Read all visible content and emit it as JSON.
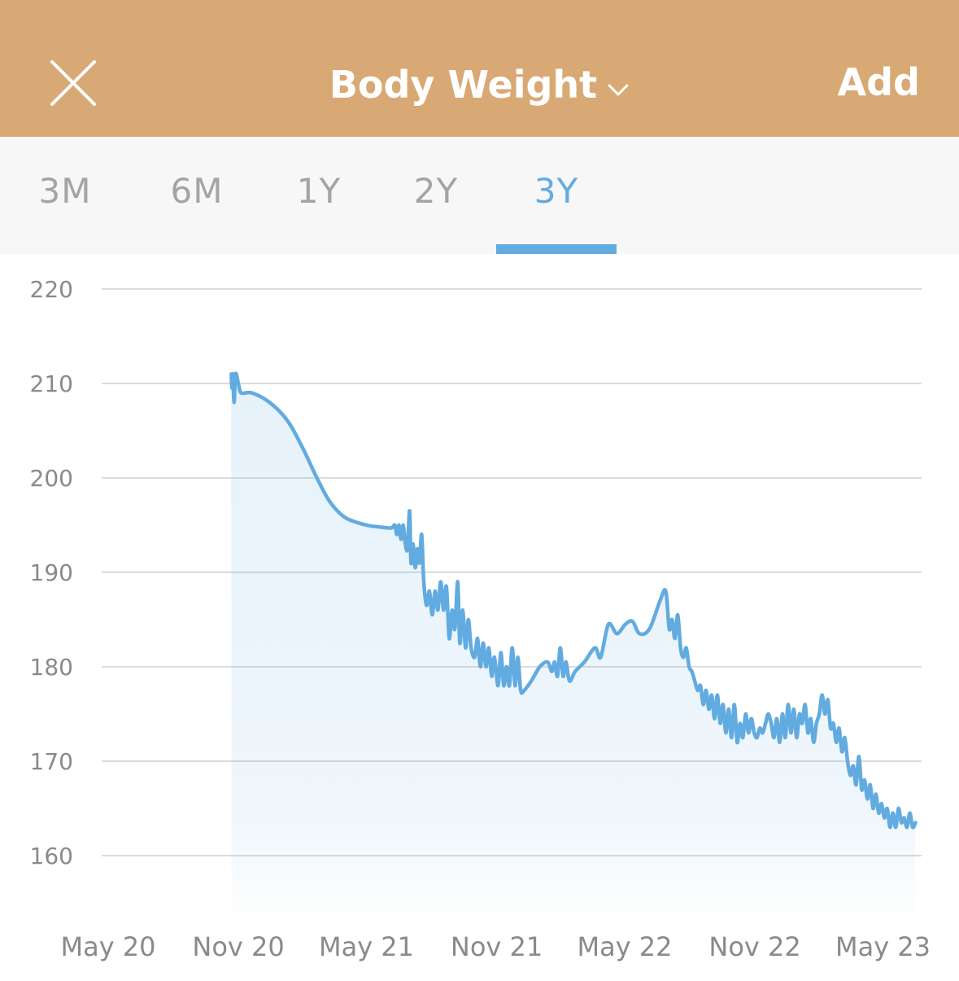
{
  "header": {
    "title": "Body Weight",
    "add_label": "Add",
    "background_color": "#d8a974",
    "close_icon": "close-icon",
    "dropdown_icon": "chevron-down-icon"
  },
  "tabs": [
    {
      "label": "3M",
      "active": false
    },
    {
      "label": "6M",
      "active": false
    },
    {
      "label": "1Y",
      "active": false
    },
    {
      "label": "2Y",
      "active": false
    },
    {
      "label": "3Y",
      "active": true
    }
  ],
  "chart_data": {
    "type": "area",
    "series_color": "#62abe0",
    "grid": true,
    "ylim": [
      150,
      220
    ],
    "yticks": [
      220,
      210,
      200,
      190,
      180,
      170,
      160
    ],
    "xlim": [
      "2020-05-01",
      "2023-06-20"
    ],
    "xticks": [
      {
        "date": "2020-05-01",
        "label": "May 20"
      },
      {
        "date": "2020-11-01",
        "label": "Nov 20"
      },
      {
        "date": "2021-05-01",
        "label": "May 21"
      },
      {
        "date": "2021-11-01",
        "label": "Nov 21"
      },
      {
        "date": "2022-05-01",
        "label": "May 22"
      },
      {
        "date": "2022-11-01",
        "label": "Nov 22"
      },
      {
        "date": "2023-05-01",
        "label": "May 23"
      }
    ],
    "points": [
      [
        "2020-10-22",
        211
      ],
      [
        "2020-10-23",
        209.5
      ],
      [
        "2020-10-24",
        211
      ],
      [
        "2020-10-26",
        208
      ],
      [
        "2020-10-28",
        211
      ],
      [
        "2020-11-01",
        210
      ],
      [
        "2020-11-05",
        209
      ],
      [
        "2020-11-20",
        209
      ],
      [
        "2020-12-15",
        208
      ],
      [
        "2021-01-10",
        206
      ],
      [
        "2021-02-01",
        203
      ],
      [
        "2021-02-20",
        200
      ],
      [
        "2021-03-10",
        197.5
      ],
      [
        "2021-04-01",
        195.8
      ],
      [
        "2021-05-01",
        195
      ],
      [
        "2021-05-20",
        194.8
      ],
      [
        "2021-06-05",
        194.7
      ],
      [
        "2021-06-10",
        195
      ],
      [
        "2021-06-13",
        194
      ],
      [
        "2021-06-16",
        195
      ],
      [
        "2021-06-19",
        193.5
      ],
      [
        "2021-06-22",
        195
      ],
      [
        "2021-06-25",
        193
      ],
      [
        "2021-06-28",
        192.5
      ],
      [
        "2021-07-01",
        196.5
      ],
      [
        "2021-07-03",
        191
      ],
      [
        "2021-07-06",
        193
      ],
      [
        "2021-07-09",
        190.5
      ],
      [
        "2021-07-12",
        192.5
      ],
      [
        "2021-07-15",
        191
      ],
      [
        "2021-07-18",
        194
      ],
      [
        "2021-07-21",
        189
      ],
      [
        "2021-07-25",
        186.5
      ],
      [
        "2021-07-29",
        188
      ],
      [
        "2021-08-02",
        185.5
      ],
      [
        "2021-08-06",
        188
      ],
      [
        "2021-08-10",
        186
      ],
      [
        "2021-08-14",
        189
      ],
      [
        "2021-08-18",
        186
      ],
      [
        "2021-08-22",
        188.5
      ],
      [
        "2021-08-26",
        183
      ],
      [
        "2021-08-30",
        186
      ],
      [
        "2021-09-03",
        184
      ],
      [
        "2021-09-07",
        189
      ],
      [
        "2021-09-10",
        182.5
      ],
      [
        "2021-09-14",
        186
      ],
      [
        "2021-09-18",
        182
      ],
      [
        "2021-09-22",
        185
      ],
      [
        "2021-09-26",
        182
      ],
      [
        "2021-10-01",
        181
      ],
      [
        "2021-10-05",
        183
      ],
      [
        "2021-10-09",
        180
      ],
      [
        "2021-10-13",
        182.5
      ],
      [
        "2021-10-17",
        180
      ],
      [
        "2021-10-21",
        182
      ],
      [
        "2021-10-25",
        179
      ],
      [
        "2021-10-29",
        181
      ],
      [
        "2021-11-03",
        178
      ],
      [
        "2021-11-07",
        181.5
      ],
      [
        "2021-11-11",
        178
      ],
      [
        "2021-11-15",
        180
      ],
      [
        "2021-11-19",
        178
      ],
      [
        "2021-11-23",
        182
      ],
      [
        "2021-11-27",
        178
      ],
      [
        "2021-12-01",
        181
      ],
      [
        "2021-12-05",
        177.5
      ],
      [
        "2021-12-10",
        177.5
      ],
      [
        "2021-12-20",
        178.5
      ],
      [
        "2022-01-01",
        180
      ],
      [
        "2022-01-12",
        180.5
      ],
      [
        "2022-01-18",
        179.5
      ],
      [
        "2022-01-22",
        180.5
      ],
      [
        "2022-01-26",
        179
      ],
      [
        "2022-01-30",
        182
      ],
      [
        "2022-02-03",
        179
      ],
      [
        "2022-02-07",
        180.5
      ],
      [
        "2022-02-12",
        178.5
      ],
      [
        "2022-02-20",
        179.5
      ],
      [
        "2022-03-05",
        180.5
      ],
      [
        "2022-03-20",
        182
      ],
      [
        "2022-03-28",
        181
      ],
      [
        "2022-04-08",
        184.5
      ],
      [
        "2022-04-20",
        183.5
      ],
      [
        "2022-05-02",
        184.5
      ],
      [
        "2022-05-12",
        184.8
      ],
      [
        "2022-05-22",
        183.5
      ],
      [
        "2022-06-05",
        184
      ],
      [
        "2022-06-20",
        187
      ],
      [
        "2022-06-28",
        188
      ],
      [
        "2022-07-03",
        184
      ],
      [
        "2022-07-07",
        185
      ],
      [
        "2022-07-11",
        183
      ],
      [
        "2022-07-15",
        185.5
      ],
      [
        "2022-07-19",
        182
      ],
      [
        "2022-07-23",
        181
      ],
      [
        "2022-07-27",
        182
      ],
      [
        "2022-07-31",
        180
      ],
      [
        "2022-08-04",
        179.5
      ],
      [
        "2022-08-08",
        178.5
      ],
      [
        "2022-08-12",
        177.5
      ],
      [
        "2022-08-16",
        178
      ],
      [
        "2022-08-20",
        176
      ],
      [
        "2022-08-24",
        177.5
      ],
      [
        "2022-08-28",
        175.5
      ],
      [
        "2022-09-01",
        177
      ],
      [
        "2022-09-05",
        174.5
      ],
      [
        "2022-09-09",
        177
      ],
      [
        "2022-09-13",
        174
      ],
      [
        "2022-09-17",
        176
      ],
      [
        "2022-09-21",
        173
      ],
      [
        "2022-09-25",
        175.5
      ],
      [
        "2022-09-29",
        172.5
      ],
      [
        "2022-10-03",
        176
      ],
      [
        "2022-10-07",
        172
      ],
      [
        "2022-10-11",
        174
      ],
      [
        "2022-10-15",
        172.5
      ],
      [
        "2022-10-19",
        175
      ],
      [
        "2022-10-23",
        173
      ],
      [
        "2022-10-27",
        174.5
      ],
      [
        "2022-10-31",
        173
      ],
      [
        "2022-11-04",
        172.5
      ],
      [
        "2022-11-08",
        173.5
      ],
      [
        "2022-11-12",
        173
      ],
      [
        "2022-11-16",
        174
      ],
      [
        "2022-11-20",
        175
      ],
      [
        "2022-11-24",
        174
      ],
      [
        "2022-11-28",
        172.5
      ],
      [
        "2022-12-02",
        174.5
      ],
      [
        "2022-12-06",
        172
      ],
      [
        "2022-12-10",
        175
      ],
      [
        "2022-12-14",
        172.5
      ],
      [
        "2022-12-18",
        176
      ],
      [
        "2022-12-22",
        173
      ],
      [
        "2022-12-26",
        175.5
      ],
      [
        "2022-12-30",
        172.5
      ],
      [
        "2023-01-03",
        175
      ],
      [
        "2023-01-07",
        174
      ],
      [
        "2023-01-11",
        176
      ],
      [
        "2023-01-15",
        173
      ],
      [
        "2023-01-19",
        174.5
      ],
      [
        "2023-01-23",
        172
      ],
      [
        "2023-01-27",
        174
      ],
      [
        "2023-01-31",
        175
      ],
      [
        "2023-02-04",
        177
      ],
      [
        "2023-02-08",
        175
      ],
      [
        "2023-02-12",
        176.5
      ],
      [
        "2023-02-16",
        173.5
      ],
      [
        "2023-02-20",
        174
      ],
      [
        "2023-02-24",
        172
      ],
      [
        "2023-02-28",
        173.5
      ],
      [
        "2023-03-04",
        171
      ],
      [
        "2023-03-08",
        172.5
      ],
      [
        "2023-03-12",
        170
      ],
      [
        "2023-03-16",
        168.5
      ],
      [
        "2023-03-20",
        169.5
      ],
      [
        "2023-03-24",
        167.5
      ],
      [
        "2023-03-28",
        170.5
      ],
      [
        "2023-04-01",
        167
      ],
      [
        "2023-04-05",
        168
      ],
      [
        "2023-04-09",
        166
      ],
      [
        "2023-04-13",
        167.5
      ],
      [
        "2023-04-17",
        165
      ],
      [
        "2023-04-21",
        166.5
      ],
      [
        "2023-04-25",
        164.5
      ],
      [
        "2023-04-29",
        165.5
      ],
      [
        "2023-05-03",
        164
      ],
      [
        "2023-05-07",
        165
      ],
      [
        "2023-05-11",
        163
      ],
      [
        "2023-05-15",
        164.5
      ],
      [
        "2023-05-19",
        163
      ],
      [
        "2023-05-23",
        165
      ],
      [
        "2023-05-27",
        163.5
      ],
      [
        "2023-05-31",
        164
      ],
      [
        "2023-06-04",
        163
      ],
      [
        "2023-06-08",
        164.5
      ],
      [
        "2023-06-12",
        163
      ],
      [
        "2023-06-16",
        163.5
      ]
    ]
  }
}
